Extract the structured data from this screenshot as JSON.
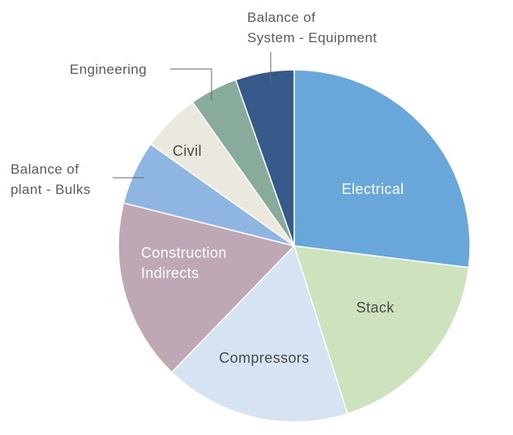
{
  "chart_data": {
    "type": "pie",
    "title": "",
    "unit": "%",
    "slices": [
      {
        "label": "Electrical",
        "label_lines": [
          "Electrical"
        ],
        "value": 27.5,
        "color": "#69a6da",
        "label_color": "#ffffff"
      },
      {
        "label": "Stack",
        "label_lines": [
          "Stack"
        ],
        "value": 18.5,
        "color": "#cde2bd",
        "label_color": "#4a4a4a"
      },
      {
        "label": "Compressors",
        "label_lines": [
          "Compressors"
        ],
        "value": 17.5,
        "color": "#d6e3f3",
        "label_color": "#4a4a4a"
      },
      {
        "label": "Construction Indirects",
        "label_lines": [
          "Construction",
          "Indirects"
        ],
        "value": 17.0,
        "color": "#bea8b5",
        "label_color": "#ffffff"
      },
      {
        "label": "Balance of plant - Bulks",
        "label_lines": [
          "Balance of",
          "plant - Bulks"
        ],
        "value": 6.0,
        "color": "#8fb6e2",
        "label_color": "#5b5b5b"
      },
      {
        "label": "Civil",
        "label_lines": [
          "Civil"
        ],
        "value": 5.5,
        "color": "#ebe8e0",
        "label_color": "#4a4a4a"
      },
      {
        "label": "Engineering",
        "label_lines": [
          "Engineering"
        ],
        "value": 4.5,
        "color": "#88ab9c",
        "label_color": "#5b5b5b"
      },
      {
        "label": "Balance of System - Equipment",
        "label_lines": [
          "Balance of",
          "System - Equipment"
        ],
        "value": 5.5,
        "color": "#365a8a",
        "label_color": "#5b5b5b"
      }
    ],
    "legend": "none"
  }
}
